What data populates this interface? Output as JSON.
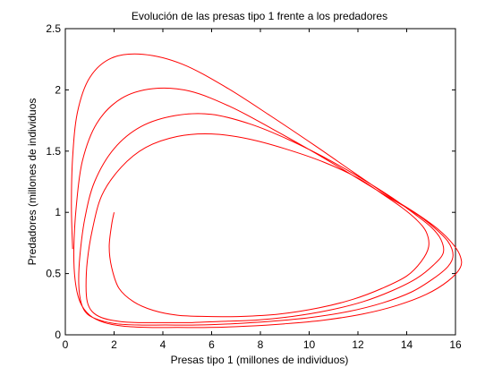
{
  "chart_data": {
    "type": "line",
    "title": "Evolución de las presas tipo 1 frente a los predadores",
    "xlabel": "Presas tipo 1 (millones de individuos)",
    "ylabel": "Predadores (millones de individuos",
    "xlim": [
      0,
      16
    ],
    "ylim": [
      0,
      2.5
    ],
    "xticks": [
      "0",
      "2",
      "4",
      "6",
      "8",
      "10",
      "12",
      "14",
      "16"
    ],
    "yticks": [
      "0",
      "0.5",
      "1",
      "1.5",
      "2",
      "2.5"
    ],
    "grid": false,
    "legend": "none",
    "series_color": "#ff0000",
    "series": [
      {
        "x": [
          2.0,
          1.9,
          1.8,
          1.9,
          2.2,
          2.8,
          3.6,
          4.6,
          5.8,
          7.2,
          8.8,
          10.4,
          11.8,
          13.0,
          14.0,
          14.6,
          14.9,
          14.8,
          14.4,
          13.8,
          13.0,
          12.0,
          10.6,
          9.0,
          7.5,
          6.0,
          4.6,
          3.3,
          2.3,
          1.5,
          1.1,
          0.9,
          0.85,
          0.9,
          1.1,
          1.5,
          2.2,
          3.0,
          4.0,
          5.2,
          6.4,
          7.8,
          9.3,
          10.8,
          12.2,
          13.4,
          14.4,
          15.1,
          15.5,
          15.4,
          15.0,
          14.3,
          13.4,
          12.2,
          10.8,
          9.2,
          7.6,
          6.0,
          4.5,
          3.1,
          2.0,
          1.2,
          0.8,
          0.6,
          0.55,
          0.65,
          0.9,
          1.4,
          2.1,
          3.0,
          4.1,
          5.4,
          6.8,
          8.4,
          10.0,
          11.6,
          13.0,
          14.2,
          15.1,
          15.7,
          15.9,
          15.7,
          15.1,
          14.3,
          13.2,
          11.8,
          10.2,
          8.5,
          6.8,
          5.1,
          3.6,
          2.3,
          1.3,
          0.7,
          0.45,
          0.35,
          0.4,
          0.6,
          1.0,
          1.6,
          2.4,
          3.4,
          4.6,
          5.9,
          7.4,
          9.0,
          10.6,
          12.2,
          13.6,
          14.8,
          15.7,
          16.2,
          16.2,
          15.9,
          15.3,
          14.4,
          13.2,
          11.8,
          10.2,
          8.4,
          6.6,
          4.8,
          3.2,
          1.9,
          1.0,
          0.5,
          0.3,
          0.25,
          0.3
        ],
        "y": [
          1.0,
          0.9,
          0.72,
          0.55,
          0.38,
          0.27,
          0.2,
          0.16,
          0.15,
          0.15,
          0.17,
          0.22,
          0.29,
          0.38,
          0.48,
          0.6,
          0.72,
          0.84,
          0.94,
          1.04,
          1.15,
          1.28,
          1.41,
          1.52,
          1.6,
          1.64,
          1.62,
          1.53,
          1.37,
          1.14,
          0.85,
          0.6,
          0.4,
          0.27,
          0.19,
          0.14,
          0.11,
          0.1,
          0.1,
          0.1,
          0.11,
          0.12,
          0.15,
          0.2,
          0.27,
          0.36,
          0.46,
          0.57,
          0.67,
          0.78,
          0.88,
          0.99,
          1.12,
          1.27,
          1.43,
          1.59,
          1.72,
          1.8,
          1.79,
          1.7,
          1.52,
          1.25,
          0.95,
          0.65,
          0.42,
          0.26,
          0.17,
          0.12,
          0.09,
          0.08,
          0.08,
          0.08,
          0.09,
          0.11,
          0.14,
          0.19,
          0.26,
          0.35,
          0.46,
          0.56,
          0.65,
          0.76,
          0.88,
          1.0,
          1.13,
          1.3,
          1.49,
          1.68,
          1.86,
          1.99,
          2.01,
          1.93,
          1.73,
          1.42,
          1.05,
          0.7,
          0.45,
          0.27,
          0.16,
          0.1,
          0.07,
          0.06,
          0.06,
          0.06,
          0.07,
          0.09,
          0.12,
          0.17,
          0.24,
          0.33,
          0.44,
          0.55,
          0.64,
          0.74,
          0.86,
          0.99,
          1.14,
          1.33,
          1.55,
          1.79,
          2.02,
          2.21,
          2.29,
          2.26,
          2.1,
          1.82,
          1.45,
          1.05,
          0.7
        ]
      }
    ]
  }
}
